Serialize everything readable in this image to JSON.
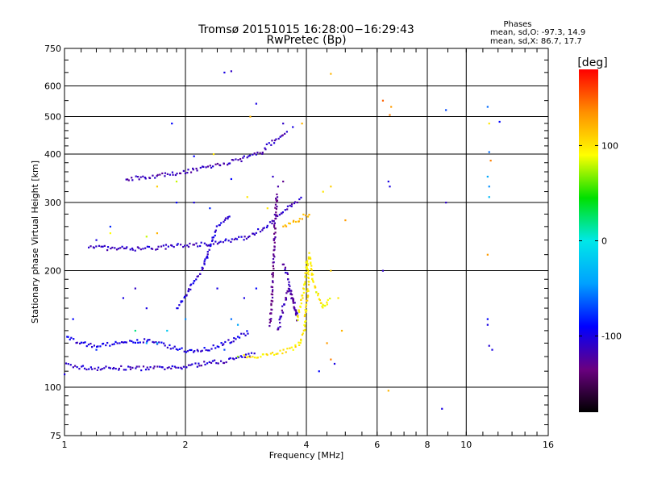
{
  "chart_data": {
    "type": "scatter",
    "title": "Tromsø 20151015 16:28:00−16:29:43",
    "subtitle": "RwPretec (Bp)",
    "xlabel": "Frequency [MHz]",
    "ylabel": "Stationary phase Virtual Height [km]",
    "x_scale": "log",
    "y_scale": "log",
    "xlim": [
      1,
      16
    ],
    "ylim": [
      75,
      750
    ],
    "grid": true,
    "x_ticks": [
      1,
      2,
      4,
      6,
      8,
      10,
      16
    ],
    "y_ticks": [
      75,
      100,
      200,
      300,
      400,
      500,
      600,
      750
    ],
    "stats": {
      "heading": "Phases",
      "line_o": "mean, sd,O: -97.3, 14.9",
      "line_x": "mean, sd,X:  86.7, 17.7"
    },
    "colorbar": {
      "label": "[deg]",
      "range": [
        -180,
        180
      ],
      "ticks": [
        -100,
        0,
        100
      ],
      "colors": [
        "#000000",
        "#6a0080",
        "#0000ff",
        "#00a0ff",
        "#00e8e8",
        "#00e000",
        "#ffff00",
        "#ff9000",
        "#ff0000"
      ]
    },
    "traces": [
      {
        "points": [
          [
            1.0,
            115
          ],
          [
            1.06,
            113
          ],
          [
            1.15,
            112
          ],
          [
            1.3,
            112
          ],
          [
            1.5,
            112
          ],
          [
            1.7,
            112
          ],
          [
            1.9,
            112
          ],
          [
            2.0,
            113
          ],
          [
            2.2,
            115
          ],
          [
            2.5,
            117
          ],
          [
            2.8,
            120
          ],
          [
            3.0,
            122
          ]
        ],
        "phase": -110
      },
      {
        "points": [
          [
            2.8,
            120
          ],
          [
            3.1,
            121
          ],
          [
            3.4,
            123
          ],
          [
            3.7,
            126
          ],
          [
            3.85,
            130
          ],
          [
            3.95,
            140
          ],
          [
            4.0,
            160
          ],
          [
            4.05,
            190
          ],
          [
            4.0,
            215
          ]
        ],
        "phase": 100
      },
      {
        "points": [
          [
            1.15,
            232
          ],
          [
            1.3,
            228
          ],
          [
            1.5,
            228
          ],
          [
            1.7,
            229
          ],
          [
            1.9,
            232
          ],
          [
            2.2,
            234
          ],
          [
            2.5,
            238
          ],
          [
            2.7,
            241
          ],
          [
            2.9,
            246
          ],
          [
            3.1,
            256
          ],
          [
            3.3,
            270
          ],
          [
            3.6,
            290
          ],
          [
            3.9,
            310
          ]
        ],
        "phase": -110
      },
      {
        "points": [
          [
            1.42,
            345
          ],
          [
            1.6,
            350
          ],
          [
            1.85,
            355
          ],
          [
            2.1,
            365
          ],
          [
            2.4,
            375
          ],
          [
            2.7,
            385
          ],
          [
            2.9,
            395
          ],
          [
            3.1,
            405
          ],
          [
            3.2,
            420
          ],
          [
            3.4,
            440
          ],
          [
            3.6,
            460
          ]
        ],
        "phase": -115
      },
      {
        "points": [
          [
            3.25,
            145
          ],
          [
            3.28,
            170
          ],
          [
            3.3,
            200
          ],
          [
            3.32,
            230
          ],
          [
            3.34,
            260
          ],
          [
            3.36,
            290
          ],
          [
            3.38,
            320
          ]
        ],
        "phase": -130
      },
      {
        "points": [
          [
            3.4,
            140
          ],
          [
            3.5,
            160
          ],
          [
            3.6,
            180
          ],
          [
            3.7,
            170
          ],
          [
            3.8,
            150
          ],
          [
            3.6,
            190
          ],
          [
            3.5,
            210
          ]
        ],
        "phase": -120
      },
      {
        "points": [
          [
            3.8,
            150
          ],
          [
            3.9,
            170
          ],
          [
            4.0,
            200
          ],
          [
            4.05,
            220
          ],
          [
            4.2,
            180
          ],
          [
            4.4,
            160
          ],
          [
            4.6,
            170
          ]
        ],
        "phase": 95
      },
      {
        "points": [
          [
            1.0,
            135
          ],
          [
            1.1,
            130
          ],
          [
            1.2,
            128
          ],
          [
            1.4,
            130
          ],
          [
            1.6,
            132
          ],
          [
            1.8,
            128
          ],
          [
            2.0,
            124
          ],
          [
            2.3,
            126
          ],
          [
            2.6,
            132
          ],
          [
            2.9,
            140
          ]
        ],
        "phase": -100
      },
      {
        "points": [
          [
            1.9,
            160
          ],
          [
            2.0,
            170
          ],
          [
            2.1,
            190
          ],
          [
            2.2,
            200
          ],
          [
            2.3,
            230
          ],
          [
            2.4,
            260
          ],
          [
            2.6,
            280
          ]
        ],
        "phase": -105
      },
      {
        "points": [
          [
            3.5,
            260
          ],
          [
            3.7,
            265
          ],
          [
            3.9,
            275
          ],
          [
            4.1,
            280
          ]
        ],
        "phase": 120
      }
    ],
    "scatter": [
      [
        2.5,
        650,
        -100
      ],
      [
        2.6,
        655,
        -110
      ],
      [
        4.6,
        645,
        120
      ],
      [
        3.0,
        540,
        -100
      ],
      [
        6.2,
        550,
        150
      ],
      [
        6.5,
        530,
        130
      ],
      [
        6.45,
        505,
        140
      ],
      [
        8.9,
        520,
        -70
      ],
      [
        11.3,
        530,
        -60
      ],
      [
        12.1,
        485,
        -90
      ],
      [
        11.4,
        480,
        100
      ],
      [
        1.85,
        480,
        -90
      ],
      [
        2.9,
        500,
        120
      ],
      [
        4.4,
        320,
        100
      ],
      [
        4.6,
        330,
        110
      ],
      [
        5.0,
        270,
        130
      ],
      [
        6.4,
        340,
        -100
      ],
      [
        6.45,
        330,
        -100
      ],
      [
        8.9,
        300,
        -110
      ],
      [
        11.3,
        350,
        -40
      ],
      [
        11.4,
        330,
        -50
      ],
      [
        11.4,
        310,
        -30
      ],
      [
        11.5,
        385,
        140
      ],
      [
        11.4,
        405,
        -60
      ],
      [
        11.3,
        220,
        130
      ],
      [
        6.2,
        200,
        -110
      ],
      [
        11.3,
        150,
        -90
      ],
      [
        11.3,
        145,
        -100
      ],
      [
        11.4,
        128,
        -105
      ],
      [
        11.6,
        125,
        -100
      ],
      [
        8.7,
        88,
        -100
      ],
      [
        6.4,
        98,
        120
      ],
      [
        4.3,
        110,
        -90
      ],
      [
        4.6,
        118,
        140
      ],
      [
        4.7,
        115,
        -100
      ],
      [
        4.5,
        130,
        130
      ],
      [
        4.9,
        140,
        120
      ],
      [
        4.8,
        170,
        100
      ],
      [
        4.6,
        200,
        110
      ],
      [
        1.0,
        108,
        -100
      ],
      [
        1.05,
        150,
        -90
      ],
      [
        1.2,
        125,
        -80
      ],
      [
        1.3,
        250,
        90
      ],
      [
        1.6,
        245,
        80
      ],
      [
        1.7,
        250,
        120
      ],
      [
        1.9,
        300,
        -90
      ],
      [
        2.1,
        300,
        -100
      ],
      [
        2.3,
        290,
        -80
      ],
      [
        1.7,
        330,
        110
      ],
      [
        1.9,
        340,
        80
      ],
      [
        2.1,
        395,
        -90
      ],
      [
        2.35,
        400,
        100
      ],
      [
        2.6,
        345,
        -90
      ],
      [
        2.85,
        310,
        100
      ],
      [
        3.2,
        290,
        100
      ],
      [
        3.4,
        330,
        -120
      ],
      [
        3.5,
        340,
        -130
      ],
      [
        3.3,
        350,
        -110
      ],
      [
        3.5,
        480,
        -110
      ],
      [
        3.7,
        470,
        -100
      ],
      [
        3.9,
        480,
        120
      ],
      [
        2.7,
        120,
        70
      ],
      [
        1.5,
        140,
        20
      ],
      [
        1.6,
        130,
        -40
      ],
      [
        1.7,
        130,
        -30
      ],
      [
        1.8,
        140,
        -20
      ],
      [
        2.0,
        150,
        -50
      ],
      [
        2.5,
        125,
        -70
      ],
      [
        2.6,
        150,
        -60
      ],
      [
        2.7,
        145,
        -40
      ],
      [
        3.0,
        180,
        -90
      ],
      [
        2.8,
        170,
        -100
      ],
      [
        2.4,
        180,
        -100
      ],
      [
        1.6,
        160,
        -100
      ],
      [
        1.4,
        170,
        -100
      ],
      [
        1.5,
        180,
        -110
      ],
      [
        1.3,
        260,
        -80
      ],
      [
        1.2,
        240,
        -100
      ]
    ]
  }
}
